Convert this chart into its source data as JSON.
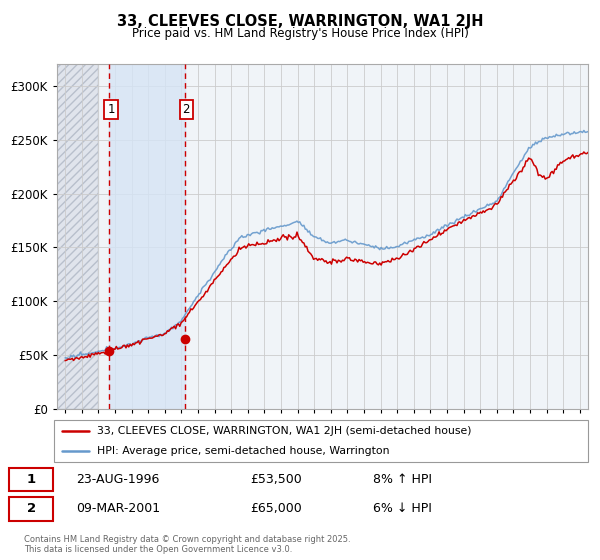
{
  "title": "33, CLEEVES CLOSE, WARRINGTON, WA1 2JH",
  "subtitle": "Price paid vs. HM Land Registry's House Price Index (HPI)",
  "ylim": [
    0,
    320000
  ],
  "yticks": [
    0,
    50000,
    100000,
    150000,
    200000,
    250000,
    300000
  ],
  "ytick_labels": [
    "£0",
    "£50K",
    "£100K",
    "£150K",
    "£200K",
    "£250K",
    "£300K"
  ],
  "background_color": "#ffffff",
  "plot_bg_color": "#f5f5f5",
  "grid_color": "#cccccc",
  "sale1": {
    "date": 1996.65,
    "price": 53500,
    "label": "1"
  },
  "sale2": {
    "date": 2001.19,
    "price": 65000,
    "label": "2"
  },
  "vline_color": "#cc0000",
  "hatch_end": 1996.0,
  "blue_band_start": 1996.65,
  "blue_band_end": 2001.19,
  "hpi_color": "#6699cc",
  "paid_color": "#cc0000",
  "legend_label_paid": "33, CLEEVES CLOSE, WARRINGTON, WA1 2JH (semi-detached house)",
  "legend_label_hpi": "HPI: Average price, semi-detached house, Warrington",
  "annotation1_date": "23-AUG-1996",
  "annotation1_price": "£53,500",
  "annotation1_hpi": "8% ↑ HPI",
  "annotation2_date": "09-MAR-2001",
  "annotation2_price": "£65,000",
  "annotation2_hpi": "6% ↓ HPI",
  "footer": "Contains HM Land Registry data © Crown copyright and database right 2025.\nThis data is licensed under the Open Government Licence v3.0.",
  "xmin": 1993.5,
  "xmax": 2025.5,
  "xtick_start": 1994,
  "xtick_end": 2025
}
